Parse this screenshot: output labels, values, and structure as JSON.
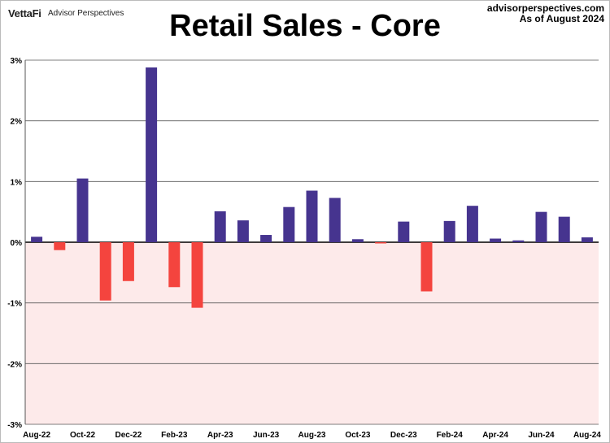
{
  "header": {
    "logo": "VettaFi",
    "logo_sub": "Advisor Perspectives",
    "site": "advisorperspectives.com",
    "date": "As of August 2024"
  },
  "chart_data": {
    "type": "bar",
    "title": "Retail Sales - Core",
    "xlabel": "",
    "ylabel": "",
    "ylim": [
      -3,
      3
    ],
    "yticks": [
      3,
      2,
      1,
      0,
      -1,
      -2,
      -3
    ],
    "ytick_labels": [
      "3%",
      "2%",
      "1%",
      "0%",
      "-1%",
      "-2%",
      "-3%"
    ],
    "categories": [
      "Aug-22",
      "Sep-22",
      "Oct-22",
      "Nov-22",
      "Dec-22",
      "Jan-23",
      "Feb-23",
      "Mar-23",
      "Apr-23",
      "May-23",
      "Jun-23",
      "Jul-23",
      "Aug-23",
      "Sep-23",
      "Oct-23",
      "Nov-23",
      "Dec-23",
      "Jan-24",
      "Feb-24",
      "Mar-24",
      "Apr-24",
      "May-24",
      "Jun-24",
      "Jul-24",
      "Aug-24"
    ],
    "xtick_labels": [
      "Aug-22",
      "Oct-22",
      "Dec-22",
      "Feb-23",
      "Apr-23",
      "Jun-23",
      "Aug-23",
      "Oct-23",
      "Dec-23",
      "Feb-24",
      "Apr-24",
      "Jun-24",
      "Aug-24"
    ],
    "values": [
      0.09,
      -0.13,
      1.05,
      -0.96,
      -0.64,
      2.88,
      -0.74,
      -1.08,
      0.51,
      0.36,
      0.12,
      0.58,
      0.85,
      0.73,
      0.05,
      -0.02,
      0.34,
      -0.81,
      0.35,
      0.6,
      0.06,
      0.03,
      0.5,
      0.42,
      0.08
    ],
    "colors": {
      "positive": "#46348f",
      "negative": "#f4443e",
      "negative_bg": "#fdeaea"
    }
  }
}
